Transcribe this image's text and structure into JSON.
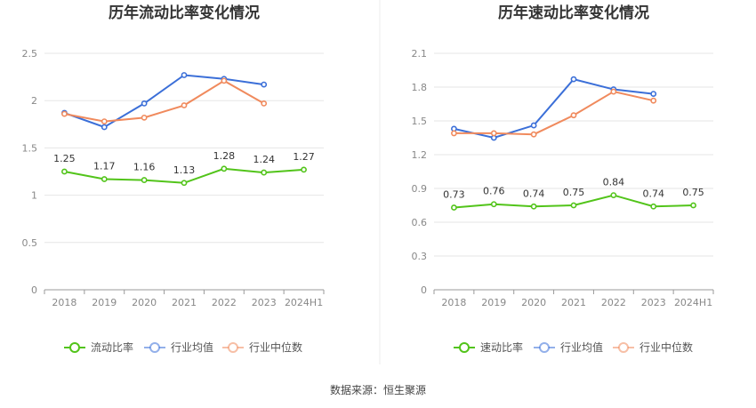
{
  "source_text": "数据来源：恒生聚源",
  "chart_data": [
    {
      "type": "line",
      "title": "历年流动比率变化情况",
      "categories": [
        "2018",
        "2019",
        "2020",
        "2021",
        "2022",
        "2023",
        "2024H1"
      ],
      "yticks": [
        "0",
        "0.5",
        "1",
        "1.5",
        "2",
        "2.5"
      ],
      "ylim": [
        0,
        2.5
      ],
      "grid": true,
      "legend_position": "bottom-center",
      "series": [
        {
          "name": "流动比率",
          "color": "#52c41a",
          "values": [
            1.25,
            1.17,
            1.16,
            1.13,
            1.28,
            1.24,
            1.27
          ],
          "labels": [
            "1.25",
            "1.17",
            "1.16",
            "1.13",
            "1.28",
            "1.24",
            "1.27"
          ]
        },
        {
          "name": "行业均值",
          "color": "#3b6fd8",
          "values": [
            1.87,
            1.72,
            1.97,
            2.27,
            2.23,
            2.17,
            null
          ]
        },
        {
          "name": "行业中位数",
          "color": "#f08a5d",
          "values": [
            1.86,
            1.78,
            1.82,
            1.95,
            2.21,
            1.97,
            null
          ]
        }
      ]
    },
    {
      "type": "line",
      "title": "历年速动比率变化情况",
      "categories": [
        "2018",
        "2019",
        "2020",
        "2021",
        "2022",
        "2023",
        "2024H1"
      ],
      "yticks": [
        "0",
        "0.3",
        "0.6",
        "0.9",
        "1.2",
        "1.5",
        "1.8",
        "2.1"
      ],
      "ylim": [
        0,
        2.1
      ],
      "grid": true,
      "legend_position": "bottom-center",
      "series": [
        {
          "name": "速动比率",
          "color": "#52c41a",
          "values": [
            0.73,
            0.76,
            0.74,
            0.75,
            0.84,
            0.74,
            0.75
          ],
          "labels": [
            "0.73",
            "0.76",
            "0.74",
            "0.75",
            "0.84",
            "0.74",
            "0.75"
          ]
        },
        {
          "name": "行业均值",
          "color": "#3b6fd8",
          "values": [
            1.43,
            1.35,
            1.46,
            1.87,
            1.78,
            1.74,
            null
          ]
        },
        {
          "name": "行业中位数",
          "color": "#f08a5d",
          "values": [
            1.39,
            1.39,
            1.38,
            1.55,
            1.76,
            1.68,
            null
          ]
        }
      ]
    }
  ]
}
